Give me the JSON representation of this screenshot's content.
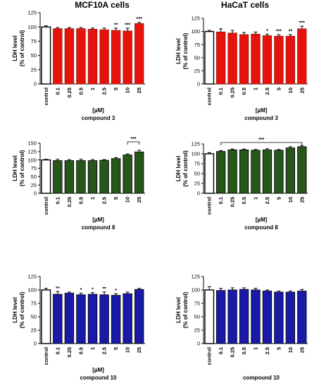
{
  "headers": {
    "left": "MCF10A cells",
    "right": "HaCaT cells"
  },
  "colors": {
    "control": "#ffffff",
    "compound3": "#e8120c",
    "compound3_edge": "#8c1a10",
    "compound8": "#27561b",
    "compound10": "#1a1aa8"
  },
  "chart_data": [
    {
      "type": "bar",
      "panel": "MCF10A cells / compound 3",
      "compound": "compound3",
      "categories": [
        "control",
        "0.1",
        "0.25",
        "0.5",
        "1",
        "2.5",
        "5",
        "10",
        "25"
      ],
      "values": [
        100,
        97,
        97,
        97,
        96,
        95,
        94,
        93,
        106
      ],
      "errors": [
        2,
        2,
        2,
        2,
        2,
        3,
        4,
        5,
        2
      ],
      "significance": [
        "",
        "",
        "",
        "",
        "",
        "",
        "**",
        "***",
        "***"
      ],
      "ylim": [
        0,
        125
      ],
      "yticks": [
        0,
        25,
        50,
        75,
        100,
        125
      ],
      "ylabel": "LDH level\n(% of control)",
      "unit": "[µM]",
      "xlabel": "compound 3",
      "bracket": ""
    },
    {
      "type": "bar",
      "panel": "HaCaT cells / compound 3",
      "compound": "compound3",
      "categories": [
        "control",
        "0.1",
        "0.25",
        "0.5",
        "1",
        "2.5",
        "5",
        "10",
        "25"
      ],
      "values": [
        100,
        99,
        97,
        94,
        95,
        92,
        91,
        91,
        105
      ],
      "errors": [
        2,
        6,
        5,
        4,
        4,
        3,
        3,
        3,
        5
      ],
      "significance": [
        "",
        "",
        "",
        "",
        "",
        "*",
        "***",
        "**",
        "***"
      ],
      "ylim": [
        0,
        125
      ],
      "yticks": [
        0,
        25,
        50,
        75,
        100,
        125
      ],
      "ylabel": "LDH level\n(% of control)",
      "unit": "[µM]",
      "xlabel": "compound 3",
      "bracket": ""
    },
    {
      "type": "bar",
      "panel": "MCF10A cells / compound 8",
      "compound": "compound8",
      "categories": [
        "control",
        "0.1",
        "0.25",
        "0.5",
        "1",
        "2.5",
        "5",
        "10",
        "25"
      ],
      "values": [
        100,
        98,
        98,
        98,
        98,
        99,
        104,
        115,
        124
      ],
      "errors": [
        2,
        4,
        3,
        4,
        3,
        2,
        3,
        3,
        5
      ],
      "significance": [
        "",
        "",
        "",
        "",
        "",
        "",
        "",
        "",
        ""
      ],
      "ylim": [
        0,
        150
      ],
      "yticks": [
        0,
        25,
        50,
        75,
        100,
        125,
        150
      ],
      "ylabel": "LDH level\n(% of control)",
      "unit": "[µM]",
      "xlabel": "compound 8",
      "bracket": "***",
      "bracket_range": [
        7,
        8
      ]
    },
    {
      "type": "bar",
      "panel": "HaCaT cells / compound 8",
      "compound": "compound8",
      "categories": [
        "control",
        "0.1",
        "0.25",
        "0.5",
        "1",
        "2.5",
        "5",
        "10",
        "25"
      ],
      "values": [
        100,
        106,
        110,
        110,
        109,
        110,
        109,
        115,
        118
      ],
      "errors": [
        3,
        2,
        2,
        2,
        2,
        3,
        2,
        3,
        3
      ],
      "significance": [
        "",
        "",
        "",
        "",
        "",
        "",
        "",
        "",
        ""
      ],
      "ylim": [
        0,
        125
      ],
      "yticks": [
        0,
        25,
        50,
        75,
        100,
        125
      ],
      "ylabel": "LDH level\n(% of control)",
      "unit": "[µM]",
      "xlabel": "compound 8",
      "bracket": "***",
      "bracket_range": [
        1,
        8
      ]
    },
    {
      "type": "bar",
      "panel": "MCF10A cells / compound 10",
      "compound": "compound10",
      "categories": [
        "control",
        "0.1",
        "0.25",
        "0.5",
        "1",
        "2.5",
        "5",
        "10",
        "25"
      ],
      "values": [
        100,
        92,
        94,
        91,
        92,
        91,
        90,
        93,
        101
      ],
      "errors": [
        3,
        5,
        2,
        3,
        3,
        5,
        3,
        3,
        2
      ],
      "significance": [
        "",
        "**",
        "",
        "*",
        "*",
        "**",
        "*",
        "",
        ""
      ],
      "ylim": [
        0,
        125
      ],
      "yticks": [
        0,
        25,
        50,
        75,
        100,
        125
      ],
      "ylabel": "LDH level\n(% of control)",
      "unit": "[µM]",
      "xlabel": "compound 10",
      "bracket": ""
    },
    {
      "type": "bar",
      "panel": "HaCaT cells / compound 10",
      "compound": "compound10",
      "categories": [
        "control",
        "0.1",
        "0.25",
        "0.5",
        "1",
        "2.5",
        "5",
        "10",
        "25"
      ],
      "values": [
        100,
        99,
        100,
        101,
        100,
        98,
        96,
        96,
        98
      ],
      "errors": [
        6,
        4,
        4,
        3,
        3,
        2,
        2,
        2,
        3
      ],
      "significance": [
        "",
        "",
        "",
        "",
        "",
        "",
        "",
        "",
        ""
      ],
      "ylim": [
        0,
        125
      ],
      "yticks": [
        0,
        25,
        50,
        75,
        100,
        125
      ],
      "ylabel": "LDH level\n(% of control)",
      "unit": "",
      "xlabel": "compound 10",
      "bracket": ""
    }
  ]
}
